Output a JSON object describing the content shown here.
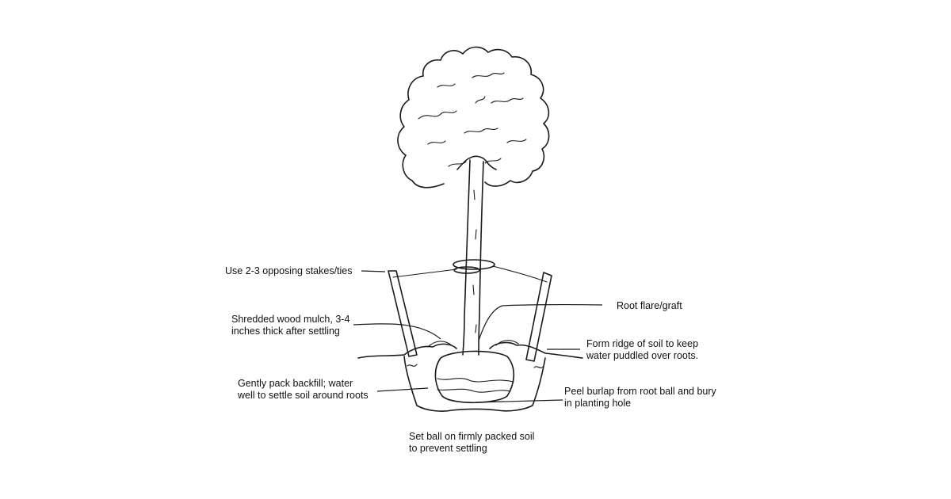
{
  "labels": {
    "stakes": "Use 2-3 opposing stakes/ties",
    "mulch_line1": "Shredded wood mulch, 3-4",
    "mulch_line2": "inches thick after settling",
    "backfill_line1": "Gently pack backfill; water",
    "backfill_line2": "well to settle soil around roots",
    "set_ball_line1": "Set ball on firmly packed soil",
    "set_ball_line2": "to prevent settling",
    "root_flare": "Root flare/graft",
    "ridge_line1": "Form ridge of soil to keep",
    "ridge_line2": "water puddled over roots.",
    "burlap_line1": "Peel burlap from root ball and bury",
    "burlap_line2": "in planting hole"
  },
  "icons": [
    "tree-canopy-icon",
    "tree-trunk-icon",
    "stake-icon",
    "tie-band-icon",
    "root-ball-icon"
  ]
}
